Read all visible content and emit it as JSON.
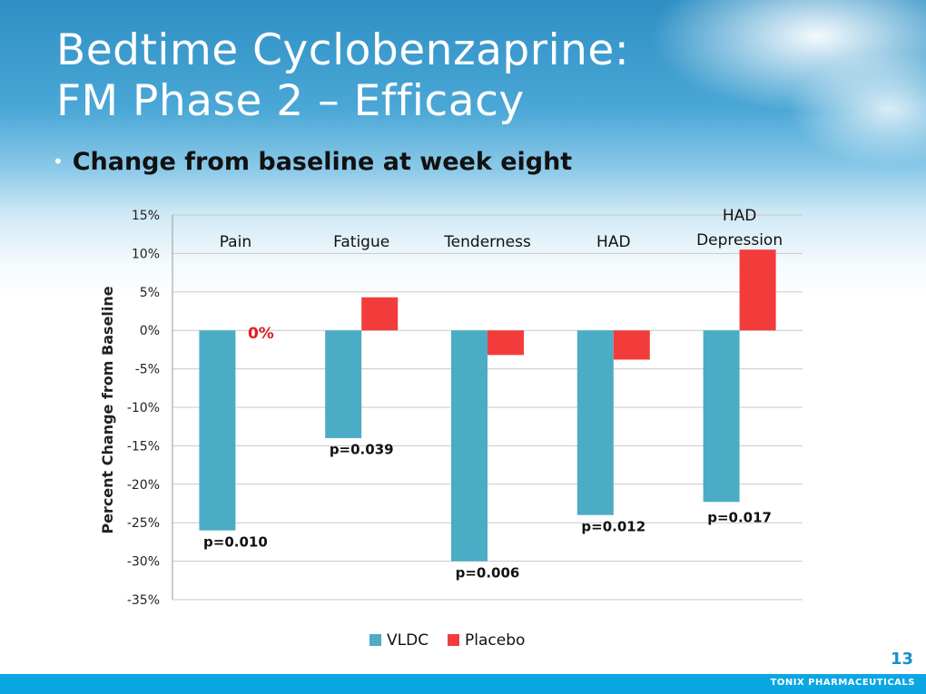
{
  "slide": {
    "title_line1": "Bedtime Cyclobenzaprine:",
    "title_line2": "FM Phase 2 – Efficacy",
    "bullet": "Change from baseline at week eight",
    "page_number": "13",
    "footer": "TONIX PHARMACEUTICALS"
  },
  "colors": {
    "vldc": "#4bacc6",
    "placebo": "#f23c3c",
    "pvalue_zero": "#e02020",
    "grid": "#c8c8c8"
  },
  "chart_data": {
    "type": "bar",
    "ylabel": "Percent Change from Baseline",
    "ylim": [
      -35,
      15
    ],
    "yticks": [
      15,
      10,
      5,
      0,
      -5,
      -10,
      -15,
      -20,
      -25,
      -30,
      -35
    ],
    "ytick_labels": [
      "15%",
      "10%",
      "5%",
      "0%",
      "-5%",
      "-10%",
      "-15%",
      "-20%",
      "-25%",
      "-30%",
      "-35%"
    ],
    "categories": [
      "Pain",
      "Fatigue",
      "Tenderness",
      "HAD",
      "HAD Depression"
    ],
    "category_label_lines": [
      [
        "Pain"
      ],
      [
        "Fatigue"
      ],
      [
        "Tenderness"
      ],
      [
        "HAD"
      ],
      [
        "HAD",
        "Depression"
      ]
    ],
    "series": [
      {
        "name": "VLDC",
        "values": [
          -26,
          -14,
          -30,
          -24,
          -22.3
        ]
      },
      {
        "name": "Placebo",
        "values": [
          0,
          4.3,
          -3.2,
          -3.8,
          10.5
        ]
      }
    ],
    "annotations": [
      {
        "category": "Pain",
        "text": "p=0.010",
        "near_value": -27.5
      },
      {
        "category": "Fatigue",
        "text": "p=0.039",
        "near_value": -15.5
      },
      {
        "category": "Tenderness",
        "text": "p=0.006",
        "near_value": -31.5
      },
      {
        "category": "HAD",
        "text": "p=0.012",
        "near_value": -25.5
      },
      {
        "category": "HAD Depression",
        "text": "p=0.017",
        "near_value": -24.3
      }
    ],
    "zero_label": {
      "category": "Pain",
      "text": "0%"
    },
    "legend": {
      "position": "bottom",
      "entries": [
        "VLDC",
        "Placebo"
      ]
    }
  }
}
